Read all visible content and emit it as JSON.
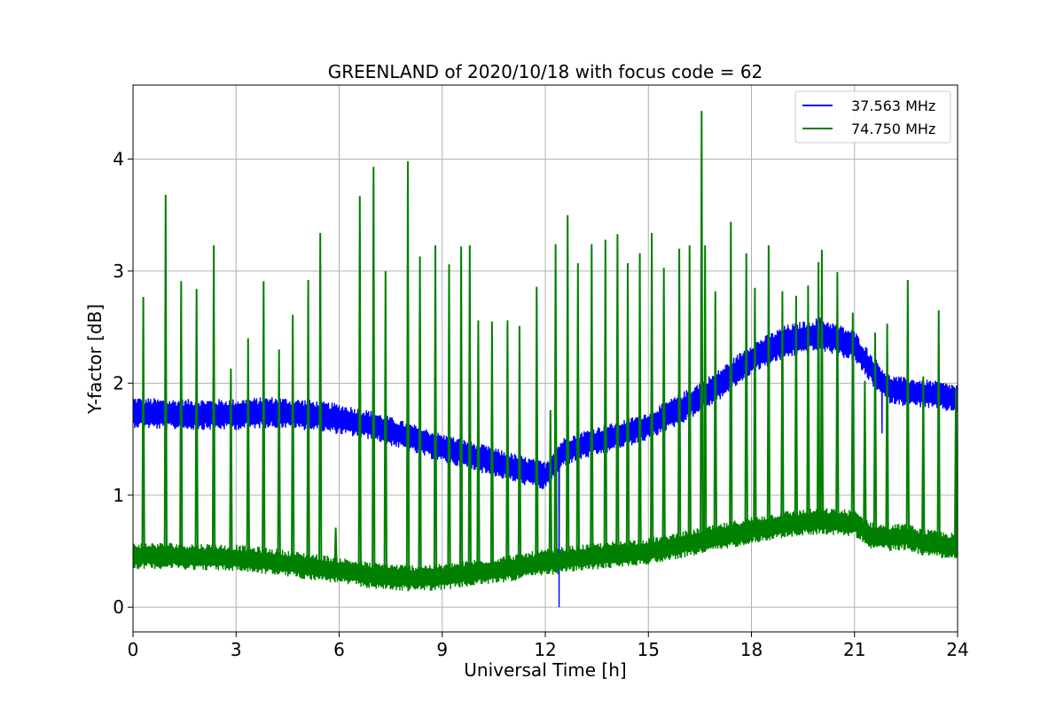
{
  "chart_data": {
    "type": "line",
    "title": "GREENLAND of 2020/10/18 with focus code = 62",
    "xlabel": "Universal Time [h]",
    "ylabel": "Y-factor [dB]",
    "xlim": [
      0,
      24
    ],
    "ylim": [
      -0.22,
      4.66
    ],
    "xticks": [
      0,
      3,
      6,
      9,
      12,
      15,
      18,
      21,
      24
    ],
    "yticks": [
      0,
      1,
      2,
      3,
      4
    ],
    "grid": true,
    "legend_position": "top-right",
    "series": [
      {
        "name": "37.563 MHz",
        "color": "#0000ff",
        "band_x": [
          0,
          1,
          2,
          3,
          4,
          5,
          6,
          7,
          8,
          9,
          10,
          11,
          12,
          12.5,
          13,
          14,
          15,
          16,
          17,
          18,
          19,
          20,
          21,
          21.5,
          22,
          22.5,
          23,
          24
        ],
        "band_mean": [
          1.74,
          1.72,
          1.72,
          1.72,
          1.74,
          1.72,
          1.68,
          1.62,
          1.52,
          1.42,
          1.34,
          1.25,
          1.17,
          1.38,
          1.44,
          1.52,
          1.62,
          1.78,
          1.97,
          2.22,
          2.37,
          2.44,
          2.33,
          2.12,
          1.95,
          1.92,
          1.91,
          1.86
        ],
        "band_halfwidth": [
          0.14,
          0.14,
          0.14,
          0.14,
          0.14,
          0.14,
          0.14,
          0.13,
          0.13,
          0.13,
          0.13,
          0.13,
          0.13,
          0.13,
          0.13,
          0.13,
          0.13,
          0.14,
          0.14,
          0.14,
          0.15,
          0.15,
          0.14,
          0.14,
          0.13,
          0.13,
          0.13,
          0.13
        ],
        "dips": [
          {
            "x": 12.4,
            "y": 0.0
          },
          {
            "x": 21.8,
            "y": 1.55
          }
        ]
      },
      {
        "name": "74.750 MHz",
        "color": "#008000",
        "band_x": [
          0,
          1,
          2,
          3,
          4,
          5,
          6,
          7,
          8,
          9,
          10,
          11,
          12,
          13,
          14,
          15,
          16,
          17,
          18,
          19,
          20,
          21,
          21.5,
          22,
          22.5,
          23,
          24
        ],
        "band_mean": [
          0.46,
          0.46,
          0.45,
          0.44,
          0.41,
          0.37,
          0.33,
          0.28,
          0.26,
          0.27,
          0.31,
          0.35,
          0.4,
          0.44,
          0.47,
          0.5,
          0.56,
          0.62,
          0.69,
          0.74,
          0.77,
          0.75,
          0.64,
          0.62,
          0.63,
          0.58,
          0.54
        ],
        "band_halfwidth": [
          0.12,
          0.12,
          0.12,
          0.12,
          0.12,
          0.12,
          0.12,
          0.12,
          0.12,
          0.12,
          0.12,
          0.12,
          0.12,
          0.12,
          0.12,
          0.12,
          0.12,
          0.12,
          0.12,
          0.12,
          0.12,
          0.12,
          0.12,
          0.12,
          0.12,
          0.12,
          0.12
        ],
        "spikes": [
          {
            "x": 0.3,
            "y": 2.77
          },
          {
            "x": 0.95,
            "y": 3.68
          },
          {
            "x": 1.4,
            "y": 2.91
          },
          {
            "x": 1.85,
            "y": 2.84
          },
          {
            "x": 2.35,
            "y": 3.23
          },
          {
            "x": 2.85,
            "y": 2.13
          },
          {
            "x": 3.35,
            "y": 2.4
          },
          {
            "x": 3.8,
            "y": 2.91
          },
          {
            "x": 4.25,
            "y": 2.3
          },
          {
            "x": 4.65,
            "y": 2.61
          },
          {
            "x": 5.1,
            "y": 2.92
          },
          {
            "x": 5.45,
            "y": 3.34
          },
          {
            "x": 5.9,
            "y": 0.71
          },
          {
            "x": 6.6,
            "y": 3.67
          },
          {
            "x": 7.0,
            "y": 3.93
          },
          {
            "x": 7.35,
            "y": 3.0
          },
          {
            "x": 8.0,
            "y": 3.98
          },
          {
            "x": 8.35,
            "y": 3.13
          },
          {
            "x": 8.8,
            "y": 3.23
          },
          {
            "x": 9.2,
            "y": 3.06
          },
          {
            "x": 9.55,
            "y": 3.22
          },
          {
            "x": 9.8,
            "y": 3.23
          },
          {
            "x": 10.05,
            "y": 2.56
          },
          {
            "x": 10.45,
            "y": 2.55
          },
          {
            "x": 10.9,
            "y": 2.56
          },
          {
            "x": 11.25,
            "y": 2.51
          },
          {
            "x": 11.75,
            "y": 2.86
          },
          {
            "x": 12.15,
            "y": 1.76
          },
          {
            "x": 12.3,
            "y": 3.24
          },
          {
            "x": 12.65,
            "y": 3.5
          },
          {
            "x": 12.95,
            "y": 3.07
          },
          {
            "x": 13.35,
            "y": 3.24
          },
          {
            "x": 13.75,
            "y": 3.28
          },
          {
            "x": 14.1,
            "y": 3.33
          },
          {
            "x": 14.4,
            "y": 3.07
          },
          {
            "x": 14.75,
            "y": 3.16
          },
          {
            "x": 15.1,
            "y": 3.34
          },
          {
            "x": 15.45,
            "y": 3.03
          },
          {
            "x": 15.9,
            "y": 3.2
          },
          {
            "x": 16.2,
            "y": 3.23
          },
          {
            "x": 16.55,
            "y": 4.43
          },
          {
            "x": 16.65,
            "y": 3.23
          },
          {
            "x": 16.95,
            "y": 2.82
          },
          {
            "x": 17.4,
            "y": 3.44
          },
          {
            "x": 17.85,
            "y": 3.16
          },
          {
            "x": 18.1,
            "y": 2.85
          },
          {
            "x": 18.5,
            "y": 3.23
          },
          {
            "x": 18.9,
            "y": 2.82
          },
          {
            "x": 19.3,
            "y": 2.78
          },
          {
            "x": 19.65,
            "y": 2.87
          },
          {
            "x": 19.95,
            "y": 3.08
          },
          {
            "x": 20.05,
            "y": 3.19
          },
          {
            "x": 20.5,
            "y": 2.99
          },
          {
            "x": 20.95,
            "y": 2.63
          },
          {
            "x": 21.3,
            "y": 2.02
          },
          {
            "x": 21.6,
            "y": 2.45
          },
          {
            "x": 21.95,
            "y": 2.53
          },
          {
            "x": 22.55,
            "y": 2.92
          },
          {
            "x": 23.0,
            "y": 2.06
          },
          {
            "x": 23.45,
            "y": 2.65
          },
          {
            "x": 23.95,
            "y": 1.95
          }
        ]
      }
    ],
    "legend": [
      "37.563 MHz",
      "74.750 MHz"
    ]
  }
}
